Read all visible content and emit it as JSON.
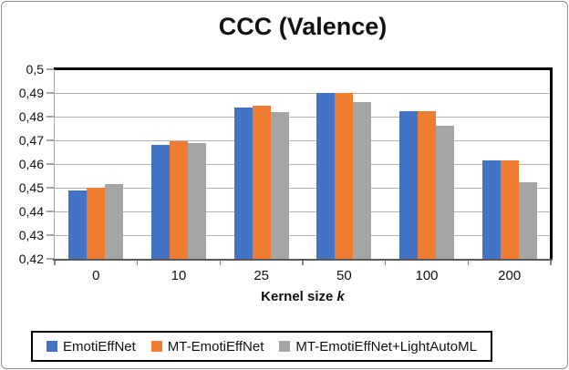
{
  "chart_data": {
    "type": "bar",
    "title": "CCC (Valence)",
    "xlabel_prefix": "Kernel size ",
    "xlabel_var": "k",
    "ylabel": "",
    "categories": [
      "0",
      "10",
      "25",
      "50",
      "100",
      "200"
    ],
    "series": [
      {
        "name": "EmotiEffNet",
        "color": "#4472C4",
        "values": [
          0.449,
          0.468,
          0.484,
          0.49,
          0.4825,
          0.4615
        ]
      },
      {
        "name": "MT-EmotiEffNet",
        "color": "#ED7D31",
        "values": [
          0.45,
          0.4695,
          0.4845,
          0.49,
          0.4825,
          0.4615
        ]
      },
      {
        "name": "MT-EmotiEffNet+LightAutoML",
        "color": "#A5A5A5",
        "values": [
          0.4515,
          0.469,
          0.482,
          0.486,
          0.476,
          0.4525
        ]
      }
    ],
    "ylim": [
      0.42,
      0.5
    ],
    "ytick_step": 0.01,
    "yticks": [
      "0,5",
      "0,49",
      "0,48",
      "0,47",
      "0,46",
      "0,45",
      "0,44",
      "0,43",
      "0,42"
    ],
    "grid": true,
    "legend_position": "bottom",
    "decimal_separator": ","
  },
  "style": {
    "gridline_color": "#B3B3B3",
    "axis_color": "#595959",
    "plot_border_color": "#000000"
  }
}
